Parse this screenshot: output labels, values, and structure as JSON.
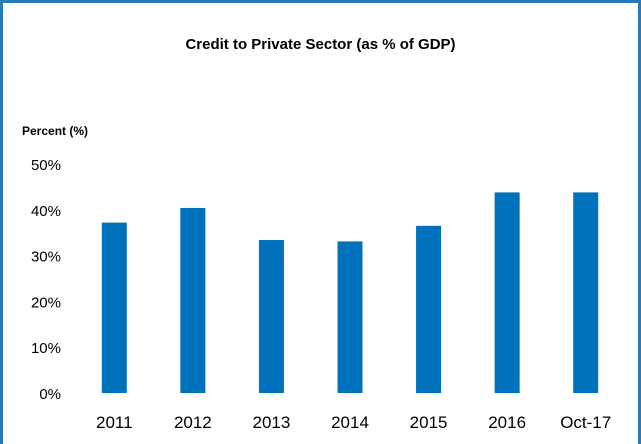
{
  "chart_data": {
    "type": "bar",
    "title": "Credit to Private Sector (as % of GDP)",
    "ylabel": "Percent (%)",
    "xlabel": "",
    "categories": [
      "2011",
      "2012",
      "2013",
      "2014",
      "2015",
      "2016",
      "Oct-17"
    ],
    "values": [
      37.2,
      40.4,
      33.4,
      33.1,
      36.5,
      43.8,
      43.8
    ],
    "ylim": [
      0,
      50
    ],
    "yticks": [
      "0%",
      "10%",
      "20%",
      "30%",
      "40%",
      "50%"
    ],
    "grid": false,
    "legend": "none",
    "bar_color": "#0072bc",
    "frame_color": "#2a7ab8"
  }
}
